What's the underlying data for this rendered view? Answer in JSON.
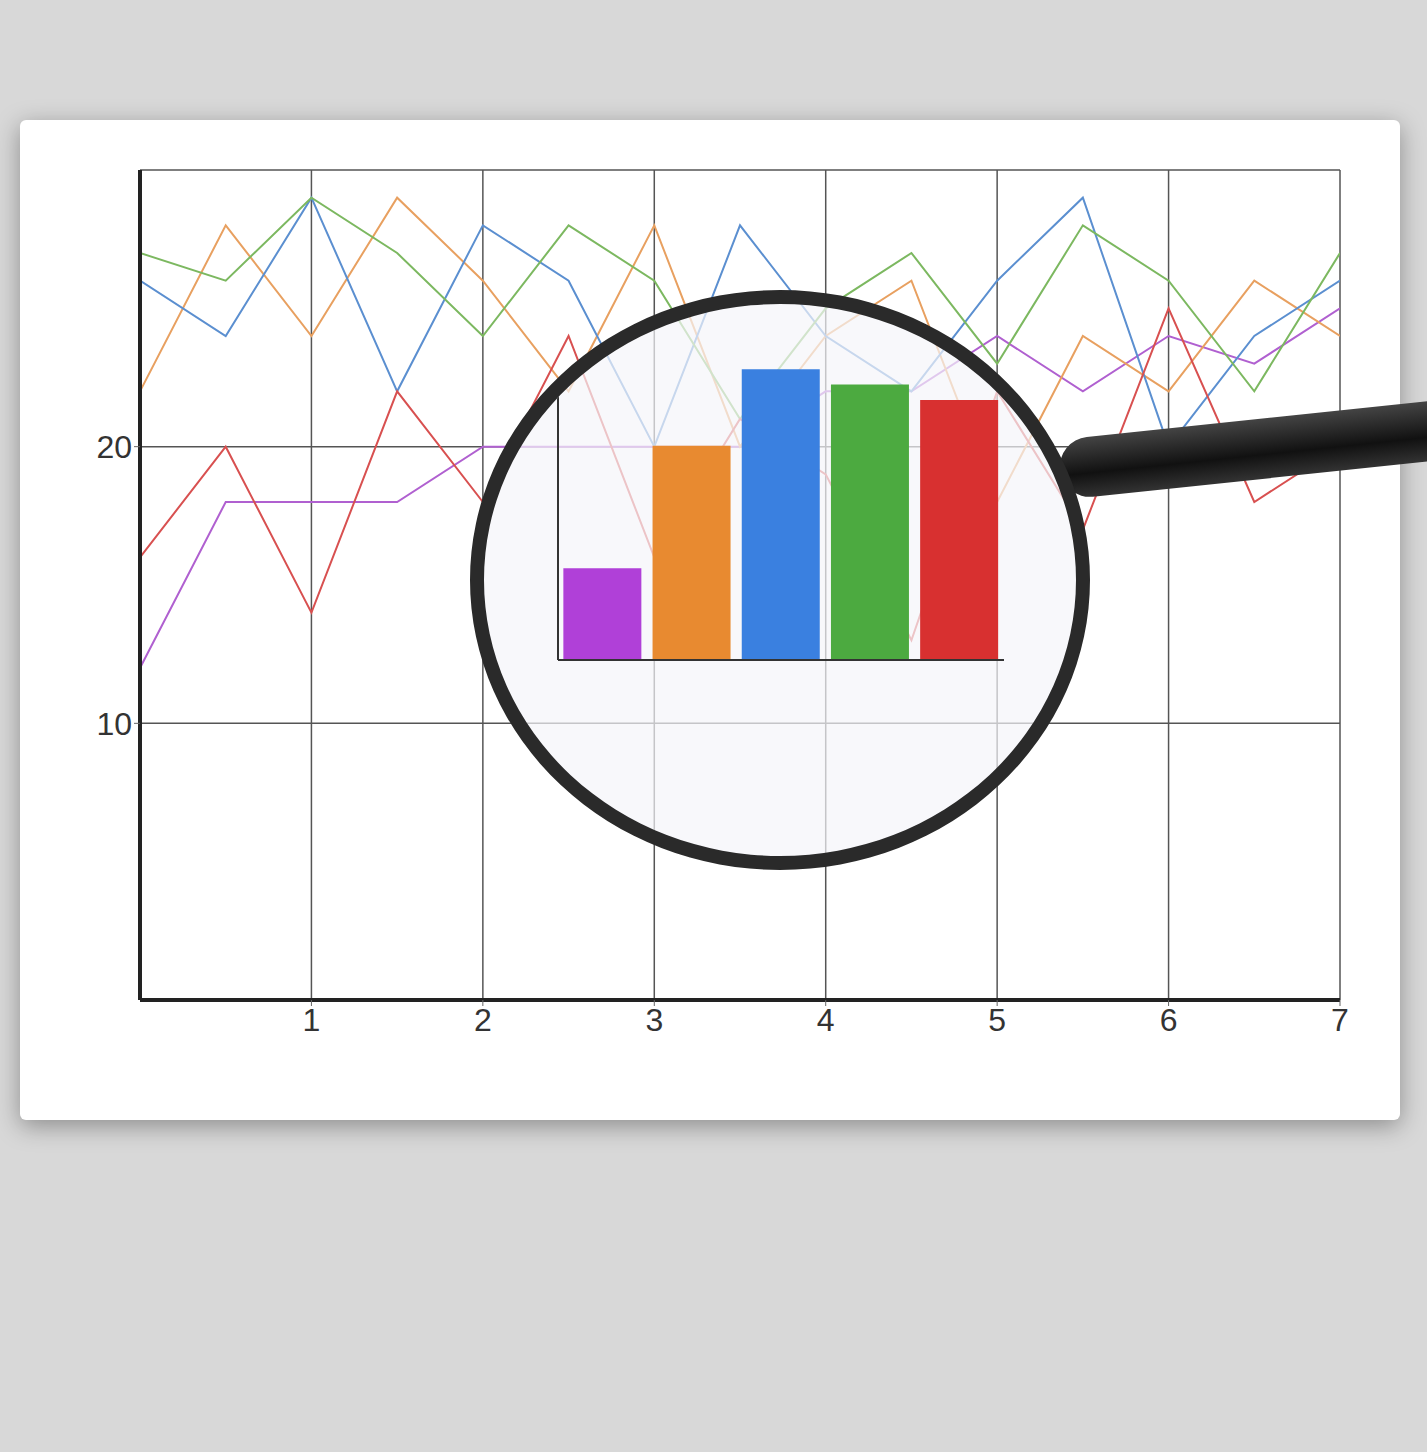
{
  "chart_data": [
    {
      "type": "line",
      "x": [
        0,
        0.5,
        1,
        1.5,
        2,
        2.5,
        3,
        3.5,
        4,
        4.5,
        5,
        5.5,
        6,
        6.5,
        7
      ],
      "xlim": [
        0,
        7
      ],
      "xticks": [
        1,
        2,
        3,
        4,
        5,
        6,
        7
      ],
      "ylim": [
        0,
        30
      ],
      "yticks": [
        10,
        20
      ],
      "grid": true,
      "series": [
        {
          "color": "#b060d0",
          "values": [
            12,
            18,
            18,
            18,
            20,
            20,
            20,
            20,
            22,
            22,
            24,
            22,
            24,
            23,
            25
          ]
        },
        {
          "color": "#e8a060",
          "values": [
            22,
            28,
            24,
            29,
            26,
            22,
            28,
            20,
            24,
            26,
            18,
            24,
            22,
            26,
            24
          ]
        },
        {
          "color": "#5b8fd0",
          "values": [
            26,
            24,
            29,
            22,
            28,
            26,
            20,
            28,
            24,
            22,
            26,
            29,
            20,
            24,
            26
          ]
        },
        {
          "color": "#7cb860",
          "values": [
            27,
            26,
            29,
            27,
            24,
            28,
            26,
            21,
            25,
            27,
            23,
            28,
            26,
            22,
            27
          ]
        },
        {
          "color": "#d85050",
          "values": [
            16,
            20,
            14,
            22,
            18,
            24,
            16,
            21,
            19,
            13,
            22,
            17,
            25,
            18,
            20
          ]
        }
      ]
    },
    {
      "type": "bar",
      "categories": [
        null,
        null,
        null,
        null,
        null
      ],
      "values": [
        30,
        70,
        95,
        90,
        85
      ],
      "colors": [
        "#b040d8",
        "#e88a30",
        "#3a80e0",
        "#4caa40",
        "#d83030"
      ],
      "ylim": [
        0,
        100
      ],
      "tick_labels": false
    }
  ]
}
